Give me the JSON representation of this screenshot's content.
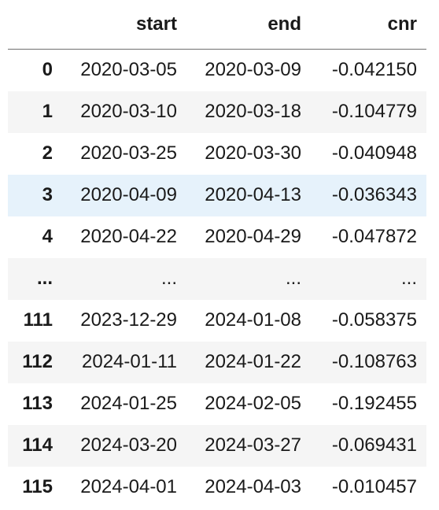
{
  "table": {
    "columns": {
      "index": "",
      "start": "start",
      "end": "end",
      "cnr": "cnr"
    },
    "rows": [
      {
        "index": "0",
        "start": "2020-03-05",
        "end": "2020-03-09",
        "cnr": "-0.042150"
      },
      {
        "index": "1",
        "start": "2020-03-10",
        "end": "2020-03-18",
        "cnr": "-0.104779"
      },
      {
        "index": "2",
        "start": "2020-03-25",
        "end": "2020-03-30",
        "cnr": "-0.040948"
      },
      {
        "index": "3",
        "start": "2020-04-09",
        "end": "2020-04-13",
        "cnr": "-0.036343"
      },
      {
        "index": "4",
        "start": "2020-04-22",
        "end": "2020-04-29",
        "cnr": "-0.047872"
      },
      {
        "index": "...",
        "start": "...",
        "end": "...",
        "cnr": "..."
      },
      {
        "index": "111",
        "start": "2023-12-29",
        "end": "2024-01-08",
        "cnr": "-0.058375"
      },
      {
        "index": "112",
        "start": "2024-01-11",
        "end": "2024-01-22",
        "cnr": "-0.108763"
      },
      {
        "index": "113",
        "start": "2024-01-25",
        "end": "2024-02-05",
        "cnr": "-0.192455"
      },
      {
        "index": "114",
        "start": "2024-03-20",
        "end": "2024-03-27",
        "cnr": "-0.069431"
      },
      {
        "index": "115",
        "start": "2024-04-01",
        "end": "2024-04-03",
        "cnr": "-0.010457"
      }
    ],
    "highlighted_row": 3,
    "colors": {
      "highlight": "#e6f2fb",
      "stripe": "#f5f5f5",
      "header_rule": "#6f6f6f"
    }
  }
}
